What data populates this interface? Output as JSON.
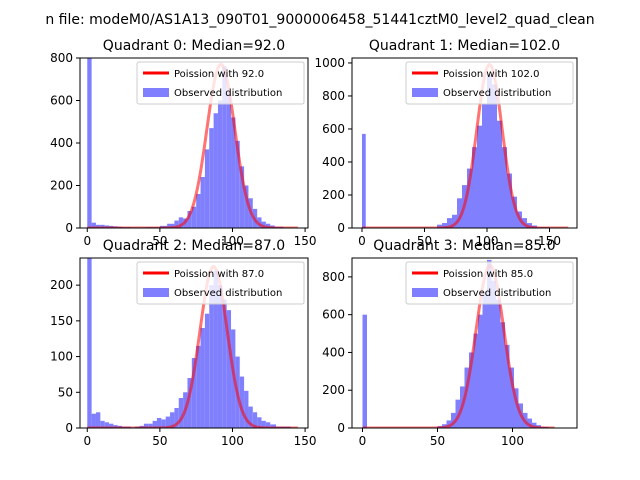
{
  "figure": {
    "suptitle": "n file: modeM0/AS1A13_090T01_9000006458_51441cztM0_level2_quad_clean"
  },
  "colors": {
    "hist": "#8080ff",
    "fit": "#ff0000",
    "text": "#000000",
    "background": "#ffffff"
  },
  "chart_data": [
    {
      "type": "bar",
      "title": "Quadrant 0: Median=92.0",
      "xticks": [
        0,
        50,
        100,
        150
      ],
      "yticks": [
        0,
        200,
        400,
        600,
        800
      ],
      "xlim": [
        -5,
        152
      ],
      "ylim": [
        0,
        800
      ],
      "legend": {
        "position": "top-right",
        "entries": [
          "Poission with 92.0",
          "Observed distribution"
        ]
      },
      "hist_bins": [
        [
          0,
          3,
          800
        ],
        [
          3,
          6,
          25
        ],
        [
          6,
          9,
          15
        ],
        [
          9,
          12,
          15
        ],
        [
          12,
          15,
          12
        ],
        [
          15,
          18,
          10
        ],
        [
          18,
          21,
          8
        ],
        [
          21,
          24,
          6
        ],
        [
          24,
          30,
          4
        ],
        [
          30,
          40,
          3
        ],
        [
          40,
          50,
          4
        ],
        [
          50,
          55,
          10
        ],
        [
          55,
          60,
          20
        ],
        [
          60,
          63,
          35
        ],
        [
          63,
          66,
          50
        ],
        [
          66,
          69,
          45
        ],
        [
          69,
          72,
          80
        ],
        [
          72,
          75,
          100
        ],
        [
          75,
          78,
          160
        ],
        [
          78,
          81,
          240
        ],
        [
          81,
          84,
          370
        ],
        [
          84,
          87,
          470
        ],
        [
          87,
          90,
          540
        ],
        [
          90,
          93,
          600
        ],
        [
          93,
          96,
          760
        ],
        [
          96,
          99,
          640
        ],
        [
          99,
          102,
          520
        ],
        [
          102,
          105,
          410
        ],
        [
          105,
          108,
          290
        ],
        [
          108,
          111,
          200
        ],
        [
          111,
          114,
          140
        ],
        [
          114,
          117,
          90
        ],
        [
          117,
          120,
          50
        ],
        [
          120,
          123,
          30
        ],
        [
          123,
          126,
          20
        ],
        [
          126,
          129,
          12
        ],
        [
          129,
          135,
          6
        ],
        [
          135,
          145,
          2
        ]
      ],
      "fit": {
        "lambda": 92.0,
        "peak": 770,
        "x_range": [
          0,
          145
        ]
      }
    },
    {
      "type": "bar",
      "title": "Quadrant 1: Median=102.0",
      "xticks": [
        0,
        50,
        100,
        150
      ],
      "yticks": [
        0,
        200,
        400,
        600,
        800,
        1000
      ],
      "xlim": [
        -8,
        172
      ],
      "ylim": [
        0,
        1030
      ],
      "legend": {
        "position": "top-right",
        "entries": [
          "Poission with 102.0",
          "Observed distribution"
        ]
      },
      "hist_bins": [
        [
          0,
          3,
          570
        ],
        [
          60,
          64,
          20
        ],
        [
          64,
          68,
          30
        ],
        [
          68,
          72,
          60
        ],
        [
          72,
          76,
          80
        ],
        [
          76,
          80,
          180
        ],
        [
          80,
          84,
          260
        ],
        [
          84,
          88,
          360
        ],
        [
          88,
          92,
          490
        ],
        [
          92,
          96,
          620
        ],
        [
          96,
          100,
          750
        ],
        [
          100,
          104,
          930
        ],
        [
          104,
          108,
          870
        ],
        [
          108,
          112,
          650
        ],
        [
          112,
          116,
          490
        ],
        [
          116,
          120,
          330
        ],
        [
          120,
          124,
          190
        ],
        [
          124,
          128,
          100
        ],
        [
          128,
          132,
          60
        ],
        [
          132,
          136,
          30
        ],
        [
          136,
          140,
          15
        ],
        [
          140,
          150,
          5
        ]
      ],
      "fit": {
        "lambda": 102.0,
        "peak": 990,
        "x_range": [
          0,
          165
        ]
      }
    },
    {
      "type": "bar",
      "title": "Quadrant 2: Median=87.0",
      "xticks": [
        0,
        50,
        100,
        150
      ],
      "yticks": [
        0,
        50,
        100,
        150,
        200
      ],
      "xlim": [
        -5,
        152
      ],
      "ylim": [
        0,
        238
      ],
      "legend": {
        "position": "top-right",
        "entries": [
          "Poission with 87.0",
          "Observed distribution"
        ]
      },
      "hist_bins": [
        [
          0,
          3,
          238
        ],
        [
          3,
          6,
          20
        ],
        [
          6,
          9,
          22
        ],
        [
          9,
          12,
          10
        ],
        [
          12,
          15,
          8
        ],
        [
          15,
          18,
          6
        ],
        [
          18,
          21,
          4
        ],
        [
          21,
          24,
          3
        ],
        [
          24,
          27,
          2
        ],
        [
          27,
          30,
          2
        ],
        [
          33,
          36,
          2
        ],
        [
          36,
          39,
          3
        ],
        [
          39,
          42,
          6
        ],
        [
          42,
          45,
          6
        ],
        [
          45,
          48,
          10
        ],
        [
          48,
          51,
          14
        ],
        [
          51,
          54,
          12
        ],
        [
          54,
          57,
          16
        ],
        [
          57,
          60,
          22
        ],
        [
          60,
          63,
          28
        ],
        [
          63,
          66,
          42
        ],
        [
          66,
          69,
          50
        ],
        [
          69,
          72,
          70
        ],
        [
          72,
          75,
          98
        ],
        [
          75,
          78,
          115
        ],
        [
          78,
          81,
          140
        ],
        [
          81,
          84,
          160
        ],
        [
          84,
          87,
          200
        ],
        [
          87,
          90,
          220
        ],
        [
          90,
          93,
          200
        ],
        [
          93,
          96,
          180
        ],
        [
          96,
          99,
          165
        ],
        [
          99,
          102,
          138
        ],
        [
          102,
          105,
          100
        ],
        [
          105,
          108,
          72
        ],
        [
          108,
          111,
          52
        ],
        [
          111,
          114,
          30
        ],
        [
          114,
          117,
          22
        ],
        [
          117,
          120,
          15
        ],
        [
          120,
          123,
          10
        ],
        [
          123,
          126,
          8
        ],
        [
          126,
          130,
          5
        ],
        [
          130,
          140,
          2
        ]
      ],
      "fit": {
        "lambda": 87.0,
        "peak": 226,
        "x_range": [
          0,
          145
        ]
      }
    },
    {
      "type": "bar",
      "title": "Quadrant 3: Median=85.0",
      "xticks": [
        0,
        50,
        100
      ],
      "yticks": [
        0,
        200,
        400,
        600,
        800
      ],
      "xlim": [
        -7,
        143
      ],
      "ylim": [
        0,
        900
      ],
      "legend": {
        "position": "top-right",
        "entries": [
          "Poission with 85.0",
          "Observed distribution"
        ]
      },
      "hist_bins": [
        [
          0,
          3,
          600
        ],
        [
          50,
          53,
          10
        ],
        [
          53,
          56,
          20
        ],
        [
          56,
          59,
          40
        ],
        [
          59,
          62,
          80
        ],
        [
          62,
          65,
          150
        ],
        [
          65,
          68,
          220
        ],
        [
          68,
          71,
          320
        ],
        [
          71,
          74,
          400
        ],
        [
          74,
          77,
          500
        ],
        [
          77,
          80,
          600
        ],
        [
          80,
          83,
          720
        ],
        [
          83,
          86,
          890
        ],
        [
          86,
          89,
          780
        ],
        [
          89,
          92,
          680
        ],
        [
          92,
          95,
          560
        ],
        [
          95,
          98,
          440
        ],
        [
          98,
          101,
          320
        ],
        [
          101,
          104,
          210
        ],
        [
          104,
          107,
          130
        ],
        [
          107,
          110,
          80
        ],
        [
          110,
          113,
          50
        ],
        [
          113,
          116,
          28
        ],
        [
          116,
          119,
          15
        ],
        [
          119,
          124,
          6
        ]
      ],
      "fit": {
        "lambda": 85.0,
        "peak": 860,
        "x_range": [
          0,
          128
        ]
      }
    }
  ]
}
